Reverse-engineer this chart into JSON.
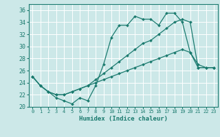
{
  "xlabel": "Humidex (Indice chaleur)",
  "bg_color": "#cce8e8",
  "grid_color": "#ffffff",
  "line_color": "#1a7a6e",
  "xlim": [
    -0.5,
    23.5
  ],
  "ylim": [
    20,
    37
  ],
  "yticks": [
    20,
    22,
    24,
    26,
    28,
    30,
    32,
    34,
    36
  ],
  "xticks": [
    0,
    1,
    2,
    3,
    4,
    5,
    6,
    7,
    8,
    9,
    10,
    11,
    12,
    13,
    14,
    15,
    16,
    17,
    18,
    19,
    20,
    21,
    22,
    23
  ],
  "line1": [
    25.0,
    23.5,
    22.5,
    21.5,
    21.0,
    20.5,
    21.5,
    21.0,
    23.5,
    27.0,
    31.5,
    33.5,
    33.5,
    35.0,
    34.5,
    34.5,
    33.5,
    35.5,
    35.5,
    34.0,
    29.0,
    27.0,
    26.5,
    26.5
  ],
  "line2": [
    25.0,
    23.5,
    22.5,
    22.0,
    22.0,
    22.5,
    23.0,
    23.5,
    24.5,
    25.5,
    26.5,
    27.5,
    28.5,
    29.5,
    30.5,
    31.0,
    32.0,
    33.0,
    34.0,
    34.5,
    34.0,
    26.5,
    26.5,
    26.5
  ],
  "line3": [
    25.0,
    23.5,
    22.5,
    22.0,
    22.0,
    22.5,
    23.0,
    23.5,
    24.0,
    24.5,
    25.0,
    25.5,
    26.0,
    26.5,
    27.0,
    27.5,
    28.0,
    28.5,
    29.0,
    29.5,
    29.0,
    26.5,
    26.5,
    26.5
  ]
}
